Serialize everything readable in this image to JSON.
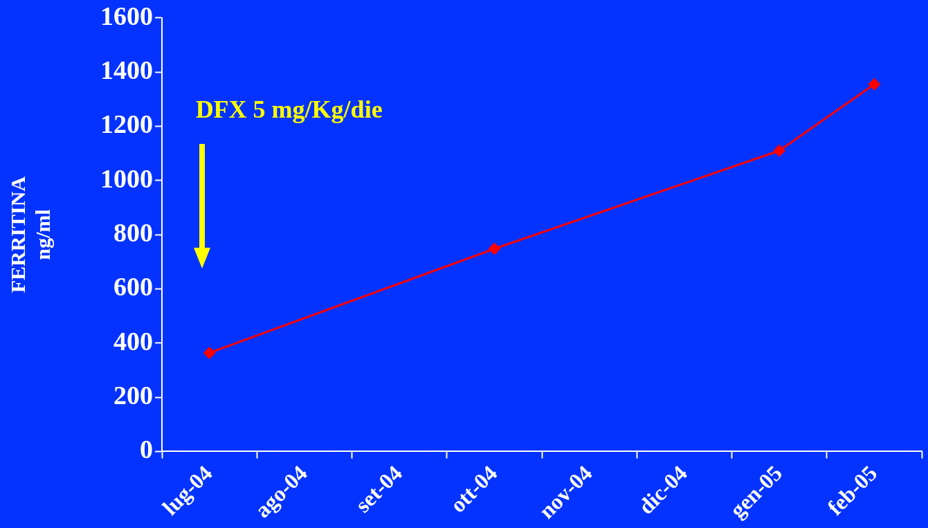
{
  "chart_data": {
    "type": "line",
    "ylabel": "FERRITINA\nng/ml",
    "categories": [
      "lug-04",
      "ago-04",
      "set-04",
      "ott-04",
      "nov-04",
      "dic-04",
      "gen-05",
      "feb-05"
    ],
    "series": [
      {
        "color": "#ff0000",
        "values": [
          364,
          null,
          null,
          748,
          null,
          null,
          1110,
          1355
        ]
      }
    ],
    "ylim": [
      0,
      1600
    ],
    "yticks": [
      0,
      200,
      400,
      600,
      800,
      1000,
      1200,
      1400,
      1600
    ],
    "grid": false,
    "legend": false,
    "marker": "diamond",
    "line_style": "solid",
    "annotations": [
      "DFX 5 mg/Kg/die"
    ]
  }
}
